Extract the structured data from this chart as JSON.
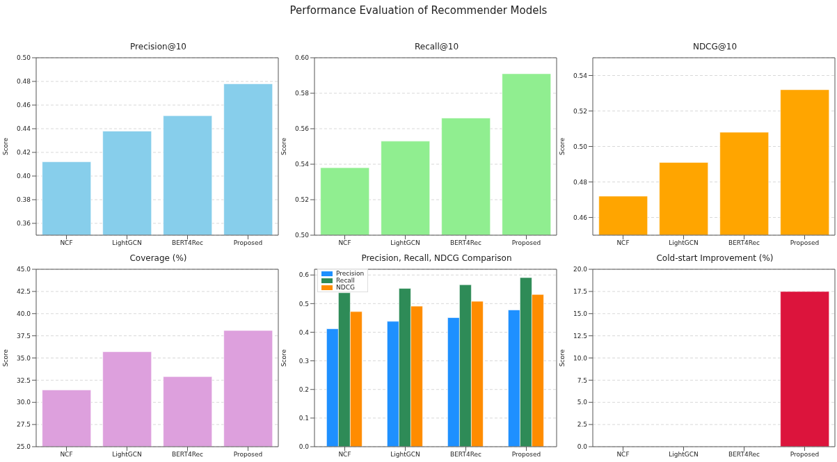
{
  "chart_data": [
    {
      "type": "bar",
      "title": "Precision@10",
      "ylabel": "Score",
      "annotations": [
        "Performance Evaluation of Recommender Models"
      ],
      "categories": [
        "NCF",
        "LightGCN",
        "BERT4Rec",
        "Proposed"
      ],
      "values": [
        0.412,
        0.438,
        0.451,
        0.478
      ],
      "color": "#87ceeb",
      "ylim": [
        0.35,
        0.5
      ],
      "yticks": [
        0.36,
        0.38,
        {
          "value": 0.4,
          "label": "0.40"
        },
        0.42,
        0.44,
        0.46,
        0.48,
        {
          "value": 0.5,
          "label": "0.50"
        }
      ],
      "grid": "y"
    },
    {
      "type": "bar",
      "title": "Recall@10",
      "ylabel": "Score",
      "categories": [
        "NCF",
        "LightGCN",
        "BERT4Rec",
        "Proposed"
      ],
      "values": [
        0.538,
        0.553,
        0.566,
        0.591
      ],
      "color": "#90ee90",
      "ylim": [
        0.5,
        0.6
      ],
      "yticks": [
        {
          "value": 0.5,
          "label": "0.50"
        },
        0.52,
        0.54,
        0.56,
        0.58,
        {
          "value": 0.6,
          "label": "0.60"
        }
      ],
      "grid": "y"
    },
    {
      "type": "bar",
      "title": "NDCG@10",
      "ylabel": "Score",
      "categories": [
        "NCF",
        "LightGCN",
        "BERT4Rec",
        "Proposed"
      ],
      "values": [
        0.472,
        0.491,
        0.508,
        0.532
      ],
      "color": "#ffa500",
      "ylim": [
        0.45,
        0.55
      ],
      "yticks": [
        0.46,
        0.48,
        {
          "value": 0.5,
          "label": "0.50"
        },
        0.52,
        0.54
      ],
      "grid": "y"
    },
    {
      "type": "bar",
      "title": "Coverage (%)",
      "ylabel": "Score",
      "categories": [
        "NCF",
        "LightGCN",
        "BERT4Rec",
        "Proposed"
      ],
      "values": [
        31.4,
        35.7,
        32.9,
        38.1
      ],
      "color": "#dda0dd",
      "ylim": [
        25,
        45
      ],
      "yticks": [
        {
          "value": 25,
          "label": "25.0"
        },
        27.5,
        {
          "value": 30,
          "label": "30.0"
        },
        32.5,
        {
          "value": 35,
          "label": "35.0"
        },
        37.5,
        {
          "value": 40,
          "label": "40.0"
        },
        42.5,
        {
          "value": 45,
          "label": "45.0"
        }
      ],
      "grid": "y"
    },
    {
      "type": "bar",
      "title": "Precision, Recall, NDCG Comparison",
      "ylabel": "Score",
      "categories": [
        "NCF",
        "LightGCN",
        "BERT4Rec",
        "Proposed"
      ],
      "series": [
        {
          "name": "Precision",
          "color": "#1e90ff",
          "values": [
            0.412,
            0.438,
            0.451,
            0.478
          ]
        },
        {
          "name": "Recall",
          "color": "#2e8b57",
          "values": [
            0.538,
            0.553,
            0.566,
            0.591
          ]
        },
        {
          "name": "NDCG",
          "color": "#ff8c00",
          "values": [
            0.472,
            0.491,
            0.508,
            0.532
          ]
        }
      ],
      "ylim": [
        0,
        0.62
      ],
      "yticks": [
        {
          "value": 0,
          "label": "0.0"
        },
        0.1,
        0.2,
        0.3,
        0.4,
        0.5,
        0.6
      ],
      "grid": "y",
      "legend": "top left"
    },
    {
      "type": "bar",
      "title": "Cold-start Improvement (%)",
      "ylabel": "Score",
      "categories": [
        "NCF",
        "LightGCN",
        "BERT4Rec",
        "Proposed"
      ],
      "values": [
        0,
        0,
        0,
        17.5
      ],
      "color": "#dc143c",
      "ylim": [
        0,
        20
      ],
      "yticks": [
        {
          "value": 0,
          "label": "0.0"
        },
        2.5,
        {
          "value": 5,
          "label": "5.0"
        },
        7.5,
        {
          "value": 10,
          "label": "10.0"
        },
        12.5,
        {
          "value": 15,
          "label": "15.0"
        },
        17.5,
        {
          "value": 20,
          "label": "20.0"
        }
      ],
      "grid": "y"
    }
  ]
}
